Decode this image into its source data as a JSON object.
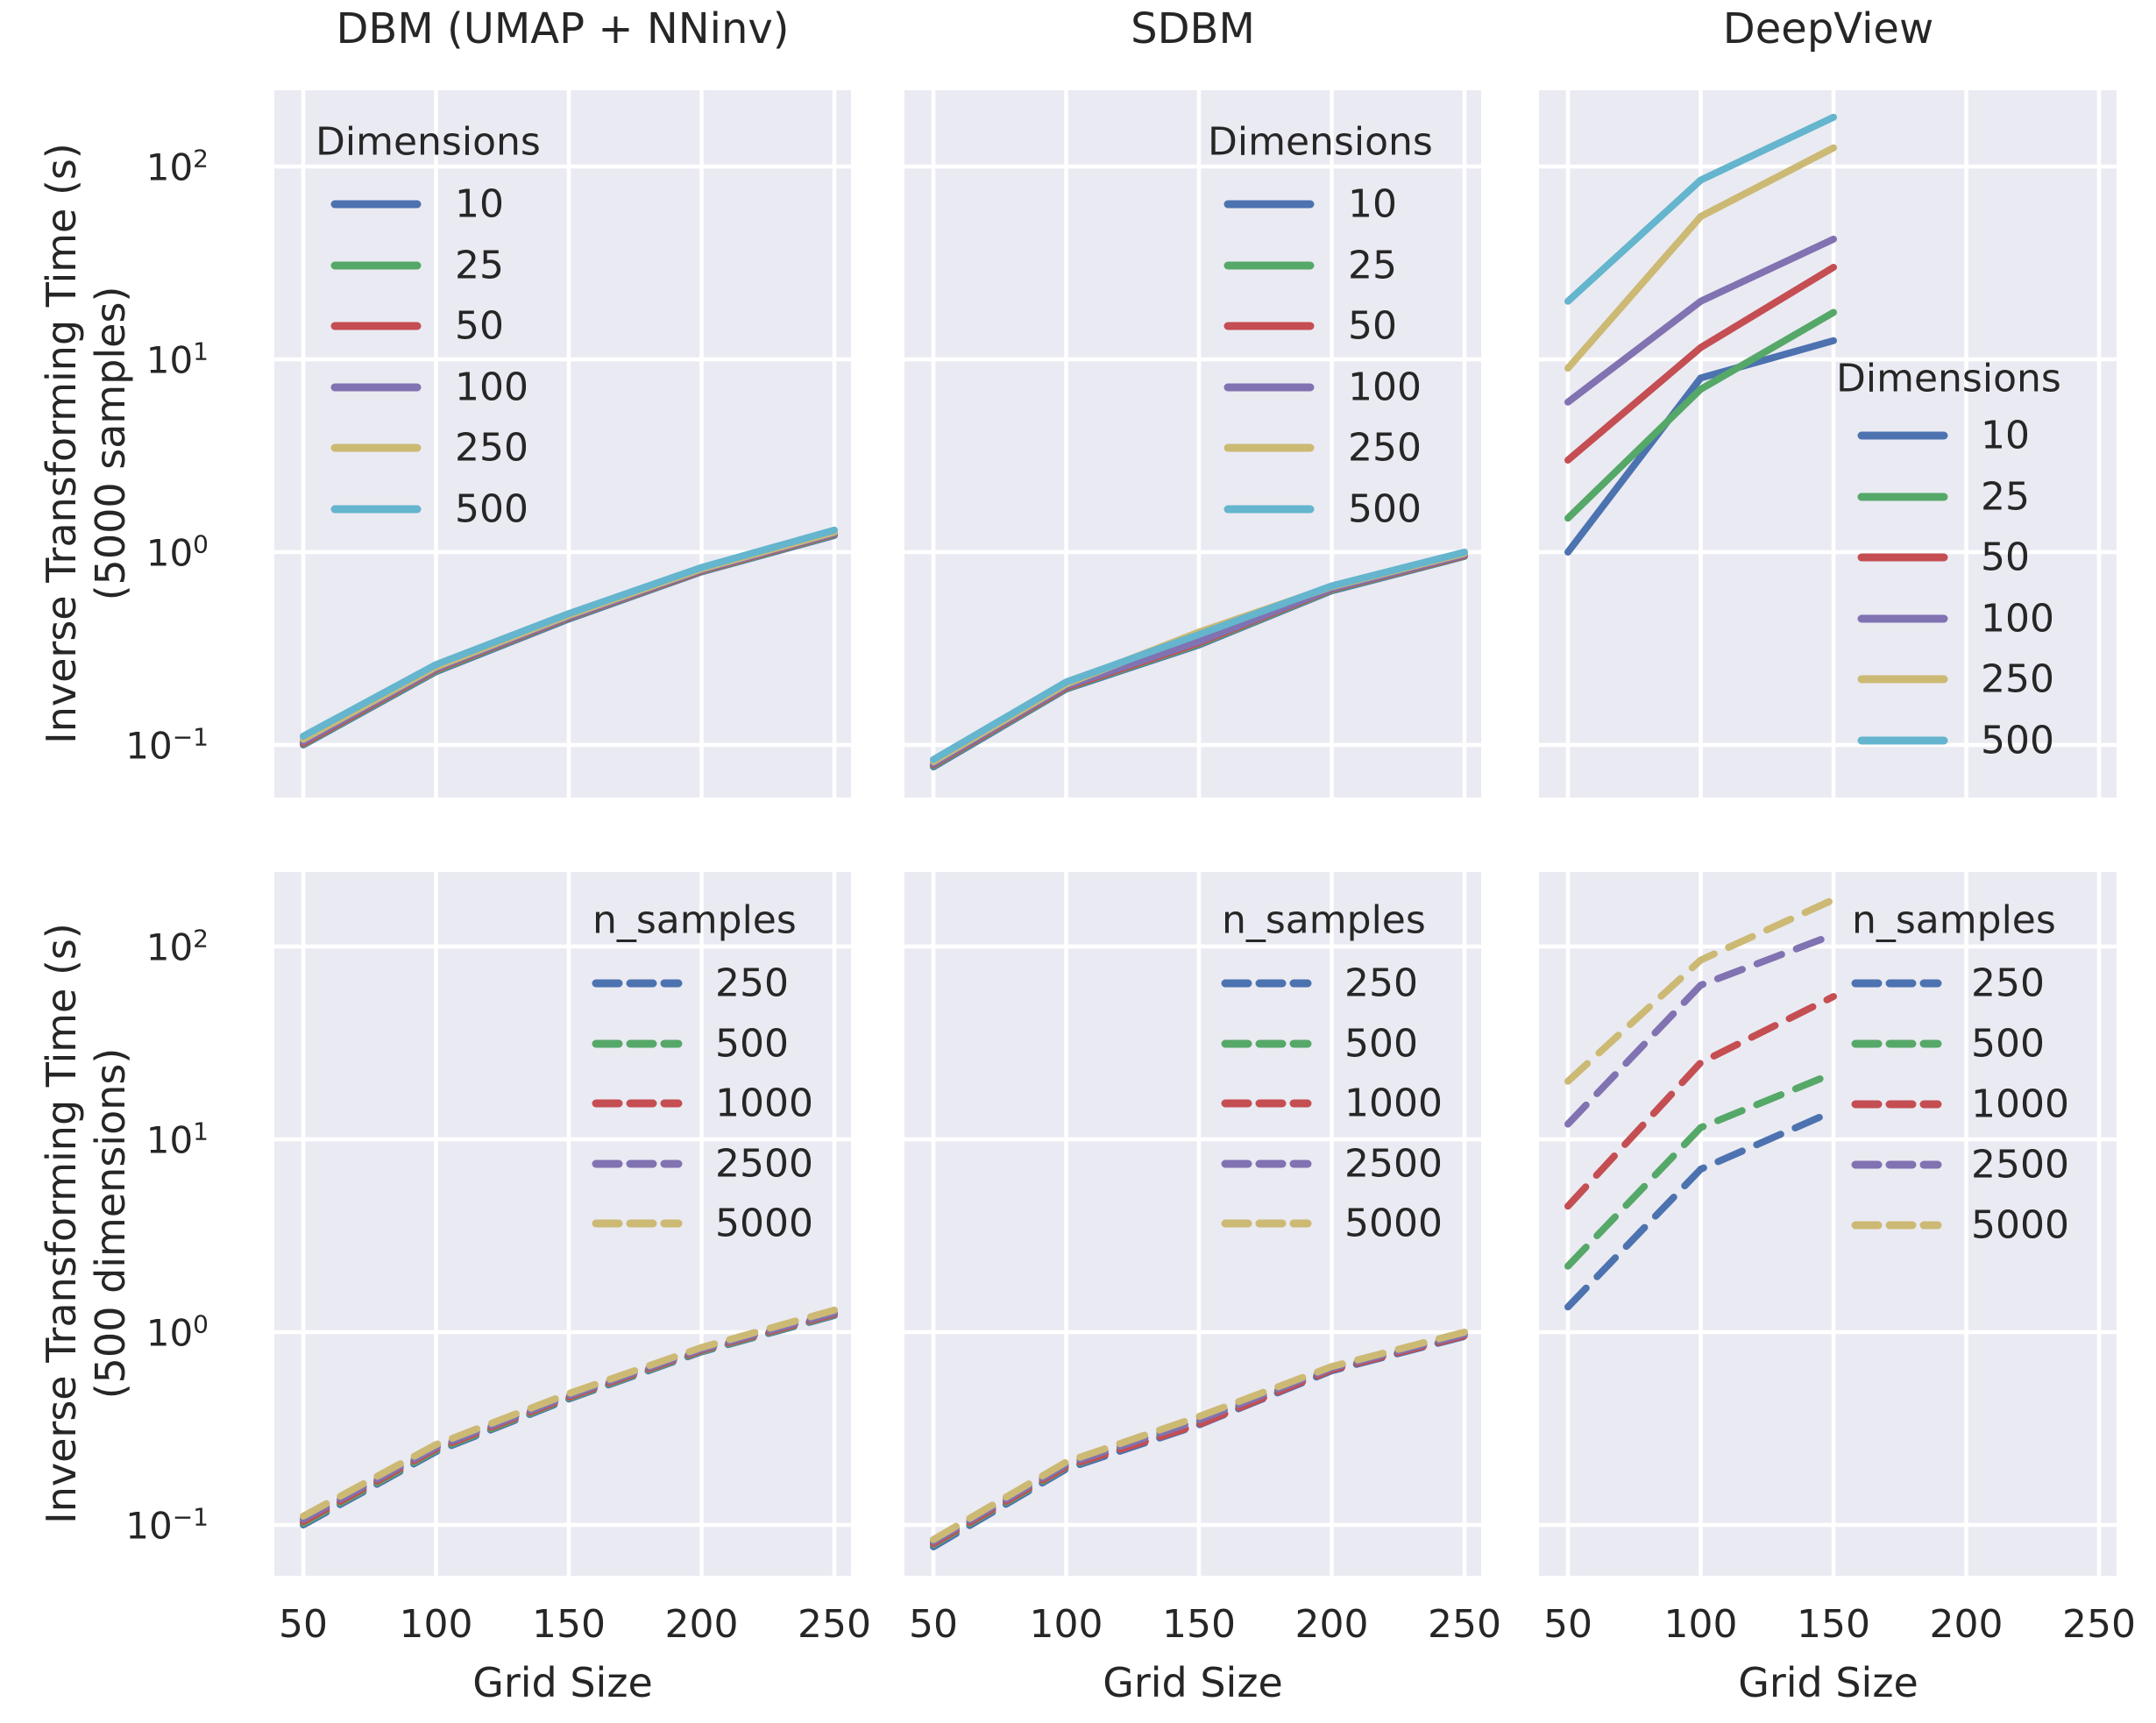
{
  "figure": {
    "background": "#ffffff",
    "axes_background": "#eaeaf2",
    "grid_color": "#ffffff",
    "text_color": "#262626",
    "palette": {
      "blue": "#4C72B0",
      "green": "#55A868",
      "red": "#C44E52",
      "purple": "#8172B2",
      "tan": "#CCB974",
      "cyan": "#64B5CD"
    }
  },
  "axes": {
    "xlabel": "Grid Size",
    "xticks": [
      "50",
      "100",
      "150",
      "200",
      "250"
    ],
    "xtick_values": [
      50,
      100,
      150,
      200,
      250
    ],
    "ytick_exponents": [
      2,
      1,
      0,
      -1
    ],
    "y_scale": "log"
  },
  "ylabels": {
    "row1_line1": "Inverse Transforming Time (s)",
    "row1_line2": "(5000 samples)",
    "row2_line1": "Inverse Transforming Time (s)",
    "row2_line2": "(500 dimensions)"
  },
  "chart_data": [
    {
      "id": "dbm-dimensions",
      "type": "line",
      "row": 0,
      "col": 0,
      "title": "DBM (UMAP + NNinv)",
      "xlabel": "Grid Size",
      "ylabel": "Inverse Transforming Time (s) (5000 samples)",
      "y_scale": "log",
      "line_style": "solid",
      "x": [
        50,
        100,
        150,
        200,
        250
      ],
      "legend": {
        "title": "Dimensions",
        "position": "upper-left"
      },
      "series": [
        {
          "name": "10",
          "color": "#4C72B0",
          "values": [
            0.1,
            0.24,
            0.45,
            0.79,
            1.22
          ]
        },
        {
          "name": "25",
          "color": "#55A868",
          "values": [
            0.101,
            0.243,
            0.455,
            0.795,
            1.23
          ]
        },
        {
          "name": "50",
          "color": "#C44E52",
          "values": [
            0.102,
            0.246,
            0.458,
            0.8,
            1.24
          ]
        },
        {
          "name": "100",
          "color": "#8172B2",
          "values": [
            0.104,
            0.249,
            0.462,
            0.808,
            1.25
          ]
        },
        {
          "name": "250",
          "color": "#CCB974",
          "values": [
            0.107,
            0.254,
            0.47,
            0.818,
            1.27
          ]
        },
        {
          "name": "500",
          "color": "#64B5CD",
          "values": [
            0.111,
            0.261,
            0.48,
            0.833,
            1.3
          ]
        }
      ]
    },
    {
      "id": "sdbm-dimensions",
      "type": "line",
      "row": 0,
      "col": 1,
      "title": "SDBM",
      "xlabel": "Grid Size",
      "ylabel": "Inverse Transforming Time (s) (5000 samples)",
      "y_scale": "log",
      "line_style": "solid",
      "x": [
        50,
        100,
        150,
        200,
        250
      ],
      "legend": {
        "title": "Dimensions",
        "position": "upper-right"
      },
      "series": [
        {
          "name": "10",
          "color": "#4C72B0",
          "values": [
            0.077,
            0.195,
            0.33,
            0.63,
            0.95
          ]
        },
        {
          "name": "25",
          "color": "#55A868",
          "values": [
            0.078,
            0.197,
            0.334,
            0.636,
            0.955
          ]
        },
        {
          "name": "50",
          "color": "#C44E52",
          "values": [
            0.079,
            0.199,
            0.338,
            0.642,
            0.96
          ]
        },
        {
          "name": "100",
          "color": "#8172B2",
          "values": [
            0.08,
            0.202,
            0.344,
            0.648,
            0.97
          ]
        },
        {
          "name": "250",
          "color": "#CCB974",
          "values": [
            0.082,
            0.207,
            0.385,
            0.662,
            0.985
          ]
        },
        {
          "name": "500",
          "color": "#64B5CD",
          "values": [
            0.084,
            0.212,
            0.374,
            0.668,
            1.0
          ]
        }
      ]
    },
    {
      "id": "deepview-dimensions",
      "type": "line",
      "row": 0,
      "col": 2,
      "title": "DeepView",
      "xlabel": "Grid Size",
      "ylabel": "Inverse Transforming Time (s) (5000 samples)",
      "y_scale": "log",
      "line_style": "solid",
      "x": [
        50,
        100,
        150
      ],
      "legend": {
        "title": "Dimensions",
        "position": "middle-right"
      },
      "series": [
        {
          "name": "10",
          "color": "#4C72B0",
          "values": [
            1.0,
            8.0,
            12.5
          ]
        },
        {
          "name": "25",
          "color": "#55A868",
          "values": [
            1.5,
            7.0,
            17.5
          ]
        },
        {
          "name": "50",
          "color": "#C44E52",
          "values": [
            3.0,
            11.5,
            30
          ]
        },
        {
          "name": "100",
          "color": "#8172B2",
          "values": [
            6.0,
            20,
            42
          ]
        },
        {
          "name": "250",
          "color": "#CCB974",
          "values": [
            9.0,
            55,
            125
          ]
        },
        {
          "name": "500",
          "color": "#64B5CD",
          "values": [
            20,
            85,
            180
          ]
        }
      ]
    },
    {
      "id": "dbm-samples",
      "type": "line",
      "row": 1,
      "col": 0,
      "title": "DBM (UMAP + NNinv)",
      "xlabel": "Grid Size",
      "ylabel": "Inverse Transforming Time (s) (500 dimensions)",
      "y_scale": "log",
      "line_style": "dashed",
      "x": [
        50,
        100,
        150,
        200,
        250
      ],
      "legend": {
        "title": "n_samples",
        "position": "upper-right"
      },
      "series": [
        {
          "name": "250",
          "color": "#4C72B0",
          "values": [
            0.1,
            0.24,
            0.45,
            0.79,
            1.22
          ]
        },
        {
          "name": "500",
          "color": "#55A868",
          "values": [
            0.102,
            0.244,
            0.455,
            0.797,
            1.23
          ]
        },
        {
          "name": "1000",
          "color": "#C44E52",
          "values": [
            0.104,
            0.248,
            0.46,
            0.805,
            1.24
          ]
        },
        {
          "name": "2500",
          "color": "#8172B2",
          "values": [
            0.107,
            0.253,
            0.468,
            0.815,
            1.26
          ]
        },
        {
          "name": "5000",
          "color": "#CCB974",
          "values": [
            0.111,
            0.261,
            0.48,
            0.833,
            1.3
          ]
        }
      ]
    },
    {
      "id": "sdbm-samples",
      "type": "line",
      "row": 1,
      "col": 1,
      "title": "SDBM",
      "xlabel": "Grid Size",
      "ylabel": "Inverse Transforming Time (s) (500 dimensions)",
      "y_scale": "log",
      "line_style": "dashed",
      "x": [
        50,
        100,
        150,
        200,
        250
      ],
      "legend": {
        "title": "n_samples",
        "position": "upper-right"
      },
      "series": [
        {
          "name": "250",
          "color": "#4C72B0",
          "values": [
            0.077,
            0.195,
            0.33,
            0.63,
            0.95
          ]
        },
        {
          "name": "500",
          "color": "#55A868",
          "values": [
            0.079,
            0.199,
            0.34,
            0.643,
            0.96
          ]
        },
        {
          "name": "1000",
          "color": "#C44E52",
          "values": [
            0.08,
            0.201,
            0.332,
            0.638,
            0.958
          ]
        },
        {
          "name": "2500",
          "color": "#8172B2",
          "values": [
            0.082,
            0.206,
            0.35,
            0.652,
            0.975
          ]
        },
        {
          "name": "5000",
          "color": "#CCB974",
          "values": [
            0.084,
            0.212,
            0.365,
            0.663,
            1.0
          ]
        }
      ]
    },
    {
      "id": "deepview-samples",
      "type": "line",
      "row": 1,
      "col": 2,
      "title": "DeepView",
      "xlabel": "Grid Size",
      "ylabel": "Inverse Transforming Time (s) (500 dimensions)",
      "y_scale": "log",
      "line_style": "dashed",
      "x": [
        50,
        100,
        150
      ],
      "legend": {
        "title": "n_samples",
        "position": "upper-right"
      },
      "series": [
        {
          "name": "250",
          "color": "#4C72B0",
          "values": [
            1.35,
            7.0,
            14
          ]
        },
        {
          "name": "500",
          "color": "#55A868",
          "values": [
            2.2,
            11.5,
            22
          ]
        },
        {
          "name": "1000",
          "color": "#C44E52",
          "values": [
            4.5,
            25,
            55
          ]
        },
        {
          "name": "2500",
          "color": "#8172B2",
          "values": [
            12,
            63,
            115
          ]
        },
        {
          "name": "5000",
          "color": "#CCB974",
          "values": [
            20,
            85,
            175
          ]
        }
      ]
    }
  ]
}
